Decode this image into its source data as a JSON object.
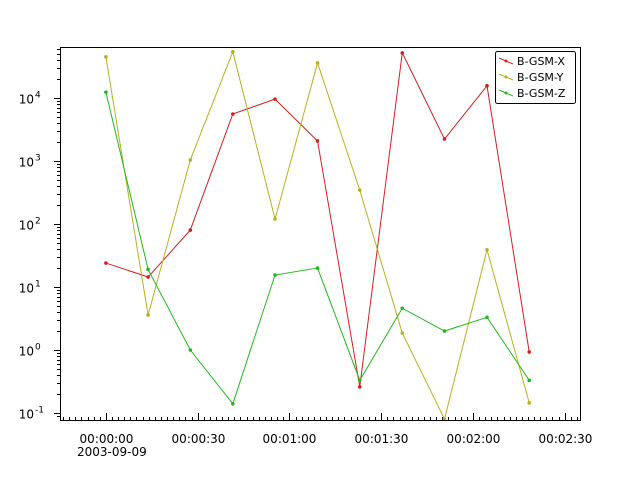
{
  "chart_data": {
    "type": "line",
    "title": "",
    "xlabel": "",
    "ylabel": "",
    "y_scale": "log",
    "ylim": [
      0.078,
      65000
    ],
    "xlim": [
      "2003-09-09 23:59:45",
      "2003-09-09 00:02:35"
    ],
    "xlim_seconds_from_start": [
      -15,
      155
    ],
    "x_start_date": "2003-09-09",
    "x_ticks": [
      "00:00:00",
      "00:00:30",
      "00:01:00",
      "00:01:30",
      "00:02:00",
      "00:02:30"
    ],
    "x_tick_seconds": [
      0,
      30,
      60,
      90,
      120,
      150
    ],
    "y_ticks": [
      {
        "base": "10",
        "exp": "-1",
        "value": 0.1
      },
      {
        "base": "10",
        "exp": "0",
        "value": 1
      },
      {
        "base": "10",
        "exp": "1",
        "value": 10
      },
      {
        "base": "10",
        "exp": "2",
        "value": 100
      },
      {
        "base": "10",
        "exp": "3",
        "value": 1000
      },
      {
        "base": "10",
        "exp": "4",
        "value": 10000
      }
    ],
    "grid": false,
    "legend_position": "top-right",
    "x_seconds": [
      0,
      13.8,
      27.6,
      41.5,
      55.3,
      69.2,
      83.0,
      96.9,
      110.7,
      124.6,
      138.4
    ],
    "series": [
      {
        "name": "B-GSM-X",
        "color": "#cc2222",
        "values": [
          24,
          14.4,
          80,
          5570,
          9600,
          2080,
          0.26,
          52000,
          2230,
          15600,
          0.93
        ]
      },
      {
        "name": "B-GSM-Y",
        "color": "#b8b020",
        "values": [
          45000,
          3.6,
          1040,
          54000,
          120,
          36000,
          345,
          1.86,
          0.08,
          39,
          0.145
        ]
      },
      {
        "name": "B-GSM-Z",
        "color": "#22b822",
        "values": [
          12400,
          19,
          1.0,
          0.14,
          15.5,
          20,
          0.33,
          4.6,
          2.0,
          3.3,
          0.33
        ]
      }
    ]
  }
}
